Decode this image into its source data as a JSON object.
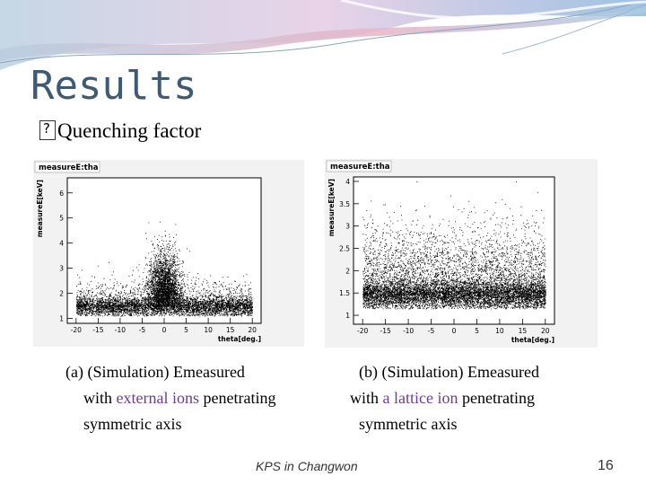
{
  "slide": {
    "title": "Results",
    "bullet": "Quenching factor",
    "footer": "KPS in Changwon",
    "page_number": "16"
  },
  "captions": {
    "left": {
      "line1": "(a) (Simulation) Emeasured",
      "line2_pre": "with ",
      "line2_hl": "external ions",
      "line2_post": " penetrating",
      "line3": "symmetric axis"
    },
    "right": {
      "line1": "(b) (Simulation) Emeasured",
      "line2_pre": "with ",
      "line2_hl": "a lattice ion",
      "line2_post": " penetrating",
      "line3": "symmetric axis"
    }
  },
  "colors": {
    "title": "#3f5a73",
    "highlight": "#6a3d8f"
  },
  "chart_data": [
    {
      "type": "scatter",
      "title": "measureE:tha",
      "xlabel": "theta[deg.]",
      "ylabel": "measureE[keV]",
      "xlim": [
        -22,
        22
      ],
      "ylim": [
        0.8,
        6.6
      ],
      "xticks": [
        "-20",
        "-15",
        "-10",
        "-5",
        "0",
        "5",
        "10",
        "15",
        "20"
      ],
      "yticks": [
        "1",
        "2",
        "3",
        "4",
        "5",
        "6"
      ],
      "distribution": {
        "band_center": 1.45,
        "band_width": 0.35,
        "x_range": [
          -20,
          20
        ],
        "peak_x": 0,
        "peak_height": 3.5,
        "peak_width": 3
      }
    },
    {
      "type": "scatter",
      "title": "measureE:tha",
      "xlabel": "theta[deg.]",
      "ylabel": "measureE[keV]",
      "xlim": [
        -22,
        22
      ],
      "ylim": [
        0.8,
        4.1
      ],
      "xticks": [
        "-20",
        "-15",
        "-10",
        "-5",
        "0",
        "5",
        "10",
        "15",
        "20"
      ],
      "yticks": [
        "1",
        "1.5",
        "2",
        "2.5",
        "3",
        "3.5",
        "4"
      ],
      "distribution": {
        "band_center": 1.45,
        "band_width": 0.3,
        "x_range": [
          -20,
          20
        ],
        "peak_x": 0,
        "peak_height": 0,
        "peak_width": 0
      }
    }
  ]
}
